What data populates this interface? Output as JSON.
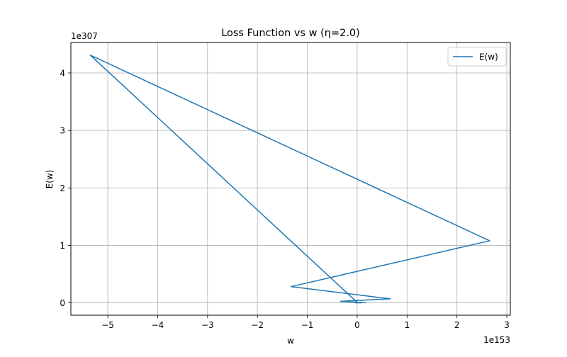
{
  "chart_data": {
    "type": "line",
    "title": "Loss Function vs w (η=2.0)",
    "xlabel": "w",
    "ylabel": "E(w)",
    "x_scale_label": "1e153",
    "y_scale_label": "1e307",
    "x_ticks": [
      -5,
      -4,
      -3,
      -2,
      -1,
      0,
      1,
      2,
      3
    ],
    "x_tick_labels": [
      "−5",
      "−4",
      "−3",
      "−2",
      "−1",
      "0",
      "1",
      "2",
      "3"
    ],
    "y_ticks": [
      0,
      1,
      2,
      3,
      4
    ],
    "y_tick_labels": [
      "0",
      "1",
      "2",
      "3",
      "4"
    ],
    "xlim": [
      -5.74,
      3.07
    ],
    "ylim": [
      -0.215,
      4.53
    ],
    "grid": true,
    "legend_position": "top-right",
    "series": [
      {
        "name": "E(w)",
        "color": "#1f77b4",
        "x": [
          0.166,
          -0.332,
          0.664,
          -1.328,
          2.656,
          -5.35,
          0.01,
          0.02,
          -0.04,
          0.08
        ],
        "y": [
          0.0017,
          0.0275,
          0.0705,
          0.282,
          1.08,
          4.31,
          0.0,
          0.0001,
          0.0002,
          0.001
        ]
      }
    ]
  }
}
